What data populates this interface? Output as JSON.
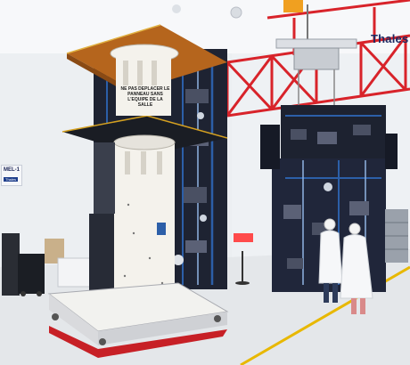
{
  "scene": {
    "wall_logo": "Thales",
    "side_sign": {
      "code": "MEL-1",
      "sub": "Thales"
    },
    "warning_label": "NE PAS DEPLACER LE PANNEAU SANS L'EQUIPE DE LA SALLE"
  },
  "colors": {
    "floor": "#e4e7ea",
    "wall": "#f2f4f6",
    "truss_red": "#d8232a",
    "gold_panel": "#b5651d",
    "satellite_white": "#f4f2ec",
    "equipment_dark": "#1d2230",
    "harness_blue": "#2c5fa8",
    "floor_stripe": "#e8b800"
  }
}
